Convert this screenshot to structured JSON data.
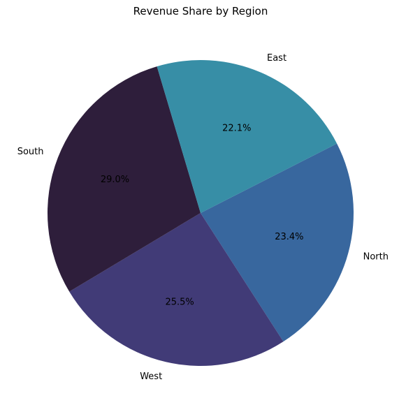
{
  "chart_data": {
    "type": "pie",
    "title": "Revenue Share by Region",
    "slices": [
      {
        "label": "North",
        "value": 23.4,
        "pct_label": "23.4%",
        "color": "#38679e"
      },
      {
        "label": "West",
        "value": 25.5,
        "pct_label": "25.5%",
        "color": "#413b77"
      },
      {
        "label": "South",
        "value": 29.0,
        "pct_label": "29.0%",
        "color": "#2e1e3b"
      },
      {
        "label": "East",
        "value": 22.1,
        "pct_label": "22.1%",
        "color": "#378ea6"
      }
    ]
  }
}
